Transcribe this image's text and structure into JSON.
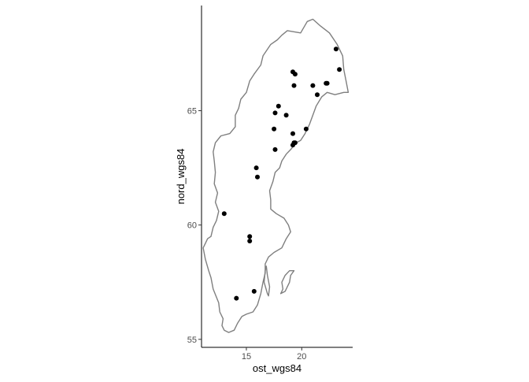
{
  "chart_data": {
    "type": "scatter",
    "subtype": "map-with-points",
    "title": "",
    "xlabel": "ost_wgs84",
    "ylabel": "nord_wgs84",
    "xlim": [
      10.95,
      24.6
    ],
    "ylim": [
      54.65,
      69.6
    ],
    "x_ticks": [
      15,
      20
    ],
    "y_ticks": [
      55,
      60,
      65
    ],
    "grid": false,
    "legend": "none",
    "colors": {
      "outline": "#7f7f7f",
      "points": "#000000",
      "axis": "#000000",
      "tick_label": "#4d4d4d"
    },
    "outline": [
      [
        13.0,
        55.4
      ],
      [
        12.8,
        55.6
      ],
      [
        12.9,
        55.9
      ],
      [
        12.6,
        56.2
      ],
      [
        12.5,
        56.6
      ],
      [
        12.0,
        57.2
      ],
      [
        11.8,
        57.7
      ],
      [
        11.6,
        58.0
      ],
      [
        11.3,
        58.5
      ],
      [
        11.1,
        59.0
      ],
      [
        11.3,
        59.2
      ],
      [
        11.5,
        59.4
      ],
      [
        11.8,
        59.5
      ],
      [
        12.0,
        59.9
      ],
      [
        12.3,
        60.2
      ],
      [
        12.5,
        60.6
      ],
      [
        12.2,
        61.0
      ],
      [
        12.4,
        61.4
      ],
      [
        12.1,
        61.8
      ],
      [
        12.2,
        62.3
      ],
      [
        12.1,
        62.8
      ],
      [
        12.0,
        63.2
      ],
      [
        12.2,
        63.6
      ],
      [
        12.7,
        63.9
      ],
      [
        13.5,
        64.0
      ],
      [
        14.0,
        64.3
      ],
      [
        14.0,
        64.8
      ],
      [
        14.3,
        65.1
      ],
      [
        14.5,
        65.5
      ],
      [
        15.0,
        65.8
      ],
      [
        15.3,
        66.3
      ],
      [
        15.7,
        66.6
      ],
      [
        16.3,
        67.0
      ],
      [
        16.5,
        67.4
      ],
      [
        17.2,
        67.9
      ],
      [
        17.8,
        68.1
      ],
      [
        18.2,
        68.3
      ],
      [
        18.7,
        68.5
      ],
      [
        19.9,
        68.4
      ],
      [
        20.5,
        68.9
      ],
      [
        21.0,
        69.0
      ],
      [
        21.7,
        68.7
      ],
      [
        22.5,
        68.4
      ],
      [
        23.2,
        67.9
      ],
      [
        23.7,
        67.4
      ],
      [
        23.8,
        66.8
      ],
      [
        24.0,
        66.3
      ],
      [
        24.2,
        65.8
      ],
      [
        23.8,
        65.8
      ],
      [
        23.0,
        65.7
      ],
      [
        22.3,
        65.8
      ],
      [
        21.8,
        65.6
      ],
      [
        21.3,
        65.2
      ],
      [
        21.0,
        64.8
      ],
      [
        20.7,
        64.4
      ],
      [
        20.3,
        64.0
      ],
      [
        19.9,
        63.7
      ],
      [
        19.5,
        63.6
      ],
      [
        19.0,
        63.3
      ],
      [
        18.6,
        63.1
      ],
      [
        18.2,
        62.8
      ],
      [
        18.0,
        62.5
      ],
      [
        17.6,
        62.3
      ],
      [
        17.4,
        61.9
      ],
      [
        17.1,
        61.5
      ],
      [
        17.2,
        61.1
      ],
      [
        17.2,
        60.7
      ],
      [
        17.7,
        60.5
      ],
      [
        18.4,
        60.3
      ],
      [
        18.8,
        60.0
      ],
      [
        19.0,
        59.7
      ],
      [
        18.6,
        59.4
      ],
      [
        18.2,
        59.0
      ],
      [
        17.5,
        58.8
      ],
      [
        17.0,
        58.6
      ],
      [
        16.7,
        58.3
      ],
      [
        16.7,
        57.9
      ],
      [
        16.5,
        57.5
      ],
      [
        16.3,
        57.0
      ],
      [
        16.0,
        56.5
      ],
      [
        15.6,
        56.2
      ],
      [
        15.0,
        56.1
      ],
      [
        14.6,
        56.0
      ],
      [
        14.2,
        55.7
      ],
      [
        13.9,
        55.4
      ],
      [
        13.4,
        55.3
      ],
      [
        13.0,
        55.4
      ]
    ],
    "islands": [
      [
        [
          17.0,
          56.9
        ],
        [
          17.1,
          57.3
        ],
        [
          16.9,
          57.8
        ],
        [
          16.8,
          58.2
        ],
        [
          16.7,
          58.0
        ],
        [
          16.6,
          57.5
        ],
        [
          16.9,
          57.0
        ],
        [
          17.0,
          56.9
        ]
      ],
      [
        [
          18.1,
          57.0
        ],
        [
          18.3,
          57.2
        ],
        [
          18.2,
          57.5
        ],
        [
          18.5,
          57.8
        ],
        [
          18.9,
          58.0
        ],
        [
          19.3,
          58.0
        ],
        [
          19.0,
          57.8
        ],
        [
          18.9,
          57.5
        ],
        [
          18.7,
          57.3
        ],
        [
          18.5,
          57.1
        ],
        [
          18.1,
          57.0
        ]
      ]
    ],
    "points": [
      [
        14.1,
        56.8
      ],
      [
        15.7,
        57.1
      ],
      [
        13.0,
        60.5
      ],
      [
        15.3,
        59.5
      ],
      [
        15.3,
        59.3
      ],
      [
        15.9,
        62.5
      ],
      [
        16.0,
        62.1
      ],
      [
        17.5,
        64.2
      ],
      [
        17.6,
        63.3
      ],
      [
        17.6,
        64.9
      ],
      [
        17.9,
        65.2
      ],
      [
        18.6,
        64.8
      ],
      [
        19.2,
        64.0
      ],
      [
        19.2,
        63.5
      ],
      [
        19.4,
        63.6
      ],
      [
        19.3,
        63.6
      ],
      [
        19.2,
        66.7
      ],
      [
        19.4,
        66.6
      ],
      [
        19.3,
        66.1
      ],
      [
        20.4,
        64.2
      ],
      [
        21.0,
        66.1
      ],
      [
        21.4,
        65.7
      ],
      [
        22.2,
        66.2
      ],
      [
        22.3,
        66.2
      ],
      [
        23.1,
        67.7
      ],
      [
        23.4,
        66.8
      ]
    ]
  }
}
